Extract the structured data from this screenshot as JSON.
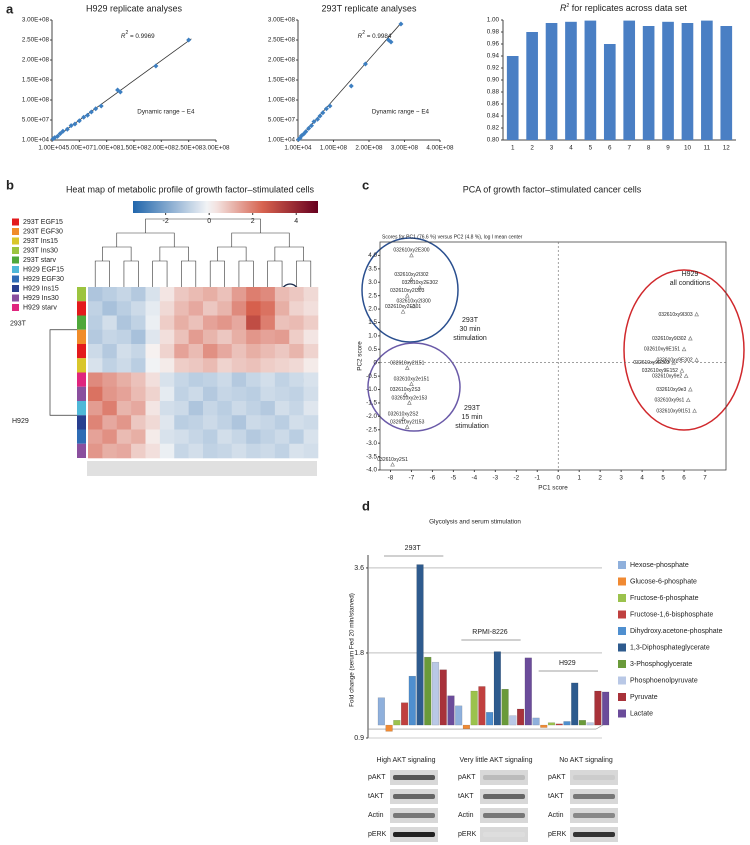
{
  "panel_labels": [
    "a",
    "b",
    "c",
    "d"
  ],
  "chart_data": [
    {
      "type": "scatter",
      "title": "H929 replicate analyses",
      "color": "#3d7fc1",
      "x": [
        2000000,
        5000000,
        10000000,
        15000000,
        20000000,
        28000000,
        35000000,
        42000000,
        50000000,
        58000000,
        65000000,
        72000000,
        80000000,
        90000000,
        120000000,
        125000000,
        190000000,
        250000000
      ],
      "y": [
        3000000,
        6000000,
        9000000,
        16000000,
        22000000,
        27000000,
        36000000,
        40000000,
        48000000,
        57000000,
        62000000,
        70000000,
        78000000,
        85000000,
        125000000,
        120000000,
        185000000,
        250000000
      ],
      "trendline": {
        "x": [
          10000,
          255000000
        ],
        "y": [
          10000,
          253000000
        ]
      },
      "annotation": {
        "symbol": "R",
        "sup": "2",
        "text": " = 0.9969"
      },
      "note": "Dynamic range ~ E4",
      "xlim": [
        10000,
        300000000
      ],
      "ylim": [
        10000,
        300000000
      ],
      "xticks": [
        {
          "value": 10000,
          "label": "1.00E+04"
        },
        {
          "value": 50000000,
          "label": "5.00E+07"
        },
        {
          "value": 100000000,
          "label": "1.00E+08"
        },
        {
          "value": 150000000,
          "label": "1.50E+08"
        },
        {
          "value": 200000000,
          "label": "2.00E+08"
        },
        {
          "value": 250000000,
          "label": "2.50E+08"
        },
        {
          "value": 300000000,
          "label": "3.00E+08"
        }
      ],
      "yticks": [
        {
          "value": 10000,
          "label": "1.00E+04"
        },
        {
          "value": 50000000,
          "label": "5.00E+07"
        },
        {
          "value": 100000000,
          "label": "1.00E+08"
        },
        {
          "value": 150000000,
          "label": "1.50E+08"
        },
        {
          "value": 200000000,
          "label": "2.00E+08"
        },
        {
          "value": 250000000,
          "label": "2.50E+08"
        },
        {
          "value": 300000000,
          "label": "3.00E+08"
        }
      ]
    },
    {
      "type": "scatter",
      "title": "293T replicate analyses",
      "color": "#3d7fc1",
      "x": [
        2000000,
        6000000,
        10000000,
        16000000,
        22000000,
        30000000,
        38000000,
        45000000,
        55000000,
        62000000,
        70000000,
        80000000,
        90000000,
        150000000,
        190000000,
        255000000,
        262000000,
        290000000
      ],
      "y": [
        2000000,
        5000000,
        11000000,
        15000000,
        21000000,
        29000000,
        36000000,
        46000000,
        52000000,
        60000000,
        68000000,
        78000000,
        85000000,
        135000000,
        190000000,
        250000000,
        245000000,
        290000000
      ],
      "trendline": {
        "x": [
          10000,
          290000000
        ],
        "y": [
          10000,
          292000000
        ]
      },
      "annotation": {
        "symbol": "R",
        "sup": "2",
        "text": " = 0.9984"
      },
      "note": "Dynamic range ~ E4",
      "xlim": [
        10000,
        400000000
      ],
      "ylim": [
        10000,
        300000000
      ],
      "xticks": [
        {
          "value": 10000,
          "label": "1.00E+04"
        },
        {
          "value": 100000000,
          "label": "1.00E+08"
        },
        {
          "value": 200000000,
          "label": "2.00E+08"
        },
        {
          "value": 300000000,
          "label": "3.00E+08"
        },
        {
          "value": 400000000,
          "label": "4.00E+08"
        }
      ],
      "yticks": [
        {
          "value": 10000,
          "label": "1.00E+04"
        },
        {
          "value": 50000000,
          "label": "5.00E+07"
        },
        {
          "value": 100000000,
          "label": "1.00E+08"
        },
        {
          "value": 150000000,
          "label": "1.50E+08"
        },
        {
          "value": 200000000,
          "label": "2.00E+08"
        },
        {
          "value": 250000000,
          "label": "2.50E+08"
        },
        {
          "value": 300000000,
          "label": "3.00E+08"
        }
      ]
    },
    {
      "type": "bar",
      "title": {
        "symbol": "R",
        "sup": "2",
        "text": " for replicates across data set"
      },
      "color": "#4a7fc4",
      "grid": false,
      "categories": [
        "1",
        "2",
        "3",
        "4",
        "5",
        "6",
        "7",
        "8",
        "9",
        "10",
        "11",
        "12"
      ],
      "values": [
        0.94,
        0.98,
        0.995,
        0.997,
        0.999,
        0.96,
        0.999,
        0.99,
        0.997,
        0.995,
        0.999,
        0.99
      ],
      "ylim": [
        0.8,
        1.0
      ],
      "yticks": [
        {
          "value": 0.8,
          "label": "0.80"
        },
        {
          "value": 0.82,
          "label": "0.82"
        },
        {
          "value": 0.84,
          "label": "0.84"
        },
        {
          "value": 0.86,
          "label": "0.86"
        },
        {
          "value": 0.88,
          "label": "0.88"
        },
        {
          "value": 0.9,
          "label": "0.90"
        },
        {
          "value": 0.92,
          "label": "0.92"
        },
        {
          "value": 0.94,
          "label": "0.94"
        },
        {
          "value": 0.96,
          "label": "0.96"
        },
        {
          "value": 0.98,
          "label": "0.98"
        },
        {
          "value": 1.0,
          "label": "1.00"
        }
      ]
    },
    {
      "type": "heatmap",
      "title": "Heat map of metabolic profile of growth factor–stimulated cells",
      "legend": [
        {
          "name": "293T EGF15",
          "color": "#e31a1c"
        },
        {
          "name": "293T EGF30",
          "color": "#f08c2a"
        },
        {
          "name": "293T Ins15",
          "color": "#d9c62b"
        },
        {
          "name": "293T Ins30",
          "color": "#9cc43f"
        },
        {
          "name": "293T starv",
          "color": "#4fa83a"
        },
        {
          "name": "H929 EGF15",
          "color": "#4fb8d8"
        },
        {
          "name": "H929 EGF30",
          "color": "#2f6cb5"
        },
        {
          "name": "H929  Ins15",
          "color": "#283f8f"
        },
        {
          "name": "H929 Ins30",
          "color": "#8a4f9e"
        },
        {
          "name": "H929 starv",
          "color": "#e0257e"
        }
      ],
      "row_cluster_labels": [
        "293T",
        "H929"
      ],
      "row_colors": [
        "#9cc43f",
        "#e31a1c",
        "#4fa83a",
        "#f08c2a",
        "#e31a1c",
        "#d9c62b",
        "#e0257e",
        "#8a4f9e",
        "#4fb8d8",
        "#283f8f",
        "#2f6cb5",
        "#8a4f9e"
      ],
      "colorbar": {
        "range": [
          -3.5,
          5
        ],
        "ticks": [
          -2,
          0,
          2,
          4
        ]
      },
      "values": [
        [
          -1.2,
          -1.0,
          -0.8,
          -1.1,
          -0.5,
          0.3,
          0.8,
          1.0,
          1.2,
          0.9,
          1.5,
          2.0,
          1.8,
          1.0,
          0.8,
          0.5
        ],
        [
          -0.9,
          -1.3,
          -1.0,
          -0.7,
          -0.3,
          0.5,
          1.0,
          1.3,
          0.8,
          1.1,
          1.8,
          2.5,
          2.2,
          1.2,
          0.6,
          0.4
        ],
        [
          -1.0,
          -0.6,
          -1.2,
          -0.9,
          -0.2,
          0.7,
          1.2,
          0.9,
          1.4,
          1.6,
          1.3,
          3.0,
          2.0,
          0.9,
          1.0,
          0.7
        ],
        [
          -1.1,
          -0.8,
          -0.9,
          -1.3,
          -0.4,
          0.4,
          0.9,
          1.5,
          1.1,
          0.8,
          1.2,
          1.6,
          1.4,
          1.5,
          0.7,
          0.3
        ],
        [
          -0.7,
          -1.1,
          -0.6,
          -0.8,
          0.1,
          0.6,
          1.4,
          1.0,
          1.7,
          1.3,
          0.9,
          1.2,
          1.0,
          0.8,
          1.1,
          0.6
        ],
        [
          -0.5,
          -0.9,
          -0.7,
          -1.0,
          -0.1,
          0.2,
          0.7,
          0.8,
          1.0,
          0.6,
          0.8,
          0.9,
          0.7,
          0.6,
          0.5,
          0.2
        ],
        [
          1.8,
          1.5,
          1.2,
          0.9,
          0.4,
          -0.5,
          -0.8,
          -1.0,
          -0.9,
          -0.7,
          -1.1,
          -0.8,
          -0.6,
          -0.9,
          -0.7,
          -0.5
        ],
        [
          2.2,
          1.6,
          1.4,
          1.0,
          0.6,
          -0.3,
          -0.9,
          -0.7,
          -1.1,
          -0.8,
          -0.9,
          -1.0,
          -0.7,
          -0.8,
          -0.9,
          -0.6
        ],
        [
          1.5,
          2.0,
          1.1,
          1.3,
          0.3,
          -0.6,
          -0.7,
          -1.2,
          -0.8,
          -1.0,
          -0.7,
          -0.9,
          -1.1,
          -0.6,
          -0.8,
          -0.4
        ],
        [
          1.9,
          1.3,
          1.6,
          0.8,
          0.5,
          -0.4,
          -1.0,
          -0.9,
          -0.7,
          -0.9,
          -1.2,
          -0.7,
          -0.8,
          -1.0,
          -0.6,
          -0.7
        ],
        [
          1.4,
          1.7,
          1.0,
          1.2,
          0.2,
          -0.5,
          -0.6,
          -0.8,
          -1.0,
          -0.6,
          -0.8,
          -1.1,
          -0.9,
          -0.7,
          -1.0,
          -0.5
        ],
        [
          1.6,
          1.2,
          1.3,
          0.7,
          0.4,
          -0.2,
          -0.8,
          -0.6,
          -0.9,
          -0.8,
          -0.6,
          -0.8,
          -0.7,
          -0.9,
          -0.5,
          -0.6
        ]
      ]
    },
    {
      "type": "scatter",
      "title": "PCA of growth factor–stimulated cancer cells",
      "subtitle": "Scores for PC1 (76.6 %) versus PC2 (4.8 %), log I mean center",
      "xlabel": "PC1 score",
      "ylabel": "PC2 score",
      "color": "#777777",
      "zero_lines": true,
      "x": [
        -7.0,
        -7.0,
        -6.6,
        -7.2,
        -6.9,
        -7.4,
        -7.2,
        -7.0,
        -7.3,
        -7.1,
        -7.4,
        -7.2,
        -7.9,
        6.6,
        6.3,
        6.0,
        6.6,
        5.5,
        5.9,
        6.1,
        6.3,
        6.2,
        6.5
      ],
      "y": [
        4.0,
        3.1,
        2.8,
        2.5,
        2.1,
        1.9,
        -0.2,
        -0.8,
        -1.2,
        -1.5,
        -2.1,
        -2.4,
        -3.8,
        1.8,
        0.9,
        0.5,
        0.1,
        0.0,
        -0.3,
        -0.5,
        -1.0,
        -1.4,
        -1.8
      ],
      "point_labels": [
        "032610xy2E300",
        "032610xy2I302",
        "032610xy2E302",
        "032610xy2I303",
        "032610xy2I300",
        "032610xy2E301",
        "032610xy2I151",
        "032610xy2e151",
        "032610xy2S3",
        "032610xy2e153",
        "032610xy2S2",
        "032610xy2I153",
        "032610xy2S1",
        "032610xy9I303",
        "032610xy9I302",
        "032610xy9E151",
        "032610xy9E302",
        "032610xy9E303",
        "032610xy9E152",
        "032610xy9e2",
        "032610xy9e3",
        "032610xy9s1",
        "032610xy9I151"
      ],
      "annotations": [
        {
          "lines": [
            "293T",
            "30 min",
            "stimulation"
          ]
        },
        {
          "lines": [
            "H929",
            "all conditions"
          ]
        },
        {
          "lines": [
            "293T",
            "15 min",
            "stimulation"
          ]
        }
      ],
      "xlim": [
        -8.5,
        8
      ],
      "ylim": [
        -4,
        4.5
      ],
      "xticks": [
        -8,
        -7,
        -6,
        -5,
        -4,
        -3,
        -2,
        -1,
        0,
        1,
        2,
        3,
        4,
        5,
        6,
        7
      ],
      "yticks": [
        {
          "value": 4,
          "label": "4.0"
        },
        3.5,
        {
          "value": 3,
          "label": "3.0"
        },
        2.5,
        {
          "value": 2,
          "label": "2.0"
        },
        1.5,
        {
          "value": 1,
          "label": "1.0"
        },
        0.5,
        0,
        -0.5,
        {
          "value": -1,
          "label": "-1.0"
        },
        -1.5,
        {
          "value": -2,
          "label": "-2.0"
        },
        -2.5,
        {
          "value": -3,
          "label": "-3.0"
        },
        -3.5,
        {
          "value": -4,
          "label": "-4.0"
        }
      ]
    },
    {
      "type": "bar",
      "title": "Glycolysis and serum stimulation",
      "ylabel": "Fold change (serum Fed 20 min/starved)",
      "log_scale": true,
      "grid": true,
      "legend_position": "right",
      "categories": [
        "293T",
        "RPMI-8226",
        "H929"
      ],
      "series": [
        {
          "name": "Hexose-phosphate",
          "color": "#8fb0dc",
          "values": [
            1.25,
            1.17,
            1.06
          ]
        },
        {
          "name": "Glucose-6-phosphate",
          "color": "#f08a33",
          "values": [
            0.95,
            0.97,
            0.98
          ]
        },
        {
          "name": "Fructose-6-phosphate",
          "color": "#9bc24d",
          "values": [
            1.04,
            1.32,
            1.02
          ]
        },
        {
          "name": "Fructose-1,6-bisphosphate",
          "color": "#c0403f",
          "values": [
            1.2,
            1.37,
            1.01
          ]
        },
        {
          "name": "Dihydroxy.acetone-phosphate",
          "color": "#4f8fcf",
          "values": [
            1.49,
            1.11,
            1.03
          ]
        },
        {
          "name": "1,3-Diphosphateglycerate",
          "color": "#2e5b8e",
          "values": [
            3.7,
            1.82,
            1.41
          ]
        },
        {
          "name": "3-Phosphoglycerate",
          "color": "#6a9a3a",
          "values": [
            1.74,
            1.34,
            1.04
          ]
        },
        {
          "name": "Phosphoenolpyruvate",
          "color": "#b9c8e6",
          "values": [
            1.67,
            1.08,
            1.02
          ]
        },
        {
          "name": "Pyruvate",
          "color": "#a8323a",
          "values": [
            1.57,
            1.14,
            1.32
          ]
        },
        {
          "name": "Lactate",
          "color": "#6b4c9a",
          "values": [
            1.27,
            1.73,
            1.31
          ]
        }
      ],
      "ylim": [
        0.9,
        4.0
      ],
      "yticks": [
        0.9,
        1.8,
        3.6
      ],
      "blots": [
        {
          "caption": "High AKT signaling",
          "rows": [
            "pAKT",
            "tAKT",
            "Actin",
            "pERK"
          ]
        },
        {
          "caption": "Very little AKT signaling",
          "rows": [
            "pAKT",
            "tAKT",
            "Actin",
            "pERK"
          ]
        },
        {
          "caption": "No AKT signaling",
          "rows": [
            "pAKT",
            "tAKT",
            "Actin",
            "pERK"
          ]
        }
      ]
    }
  ]
}
